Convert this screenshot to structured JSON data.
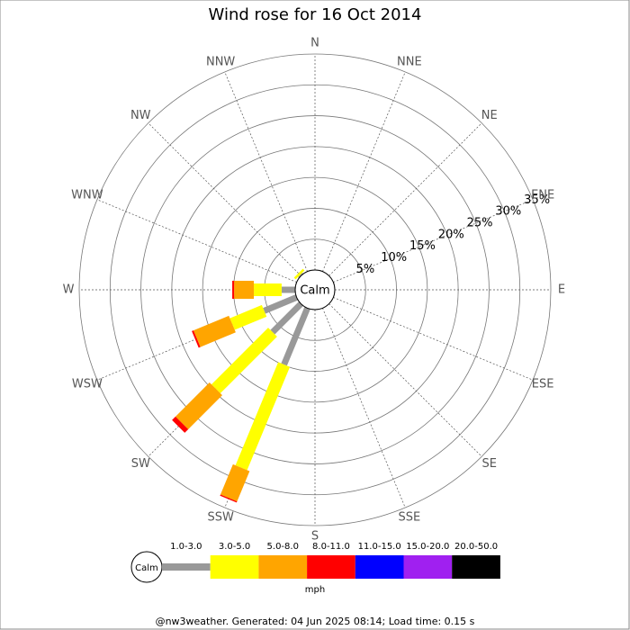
{
  "chart_data": {
    "type": "wind_rose",
    "title": "Wind rose for 16 Oct 2014",
    "categories": [
      "N",
      "NNE",
      "NE",
      "ENE",
      "E",
      "ESE",
      "SE",
      "SSE",
      "S",
      "SSW",
      "SW",
      "WSW",
      "W",
      "WNW",
      "NW",
      "NNW"
    ],
    "center_label": "Calm",
    "unit": "mph",
    "rlim": [
      0,
      35
    ],
    "rticks": [
      {
        "value": 5,
        "label": "5%"
      },
      {
        "value": 10,
        "label": "10%"
      },
      {
        "value": 15,
        "label": "15%"
      },
      {
        "value": 20,
        "label": "20%"
      },
      {
        "value": 25,
        "label": "25%"
      },
      {
        "value": 30,
        "label": "30%"
      },
      {
        "value": 35,
        "label": "35%"
      }
    ],
    "series": [
      {
        "name": "1.0-3.0",
        "color": "#999999",
        "values": [
          0,
          0,
          0,
          0,
          0,
          0,
          0,
          0,
          0,
          9.9,
          6.5,
          5.7,
          2.2,
          0,
          0.2,
          0
        ]
      },
      {
        "name": "3.0-5.0",
        "color": "#ffff00",
        "values": [
          0,
          0,
          0,
          0,
          0,
          0,
          0,
          0,
          0,
          18.1,
          13,
          5.6,
          4.5,
          0,
          0.4,
          0
        ]
      },
      {
        "name": "5.0-8.0",
        "color": "#ffa500",
        "values": [
          0,
          0,
          0,
          0,
          0,
          0,
          0,
          0,
          0,
          5.3,
          7.8,
          6.2,
          3.2,
          0,
          0,
          0
        ]
      },
      {
        "name": "8.0-11.0",
        "color": "#ff0000",
        "values": [
          0,
          0,
          0,
          0,
          0,
          0,
          0,
          0,
          0,
          0.2,
          0.8,
          0.3,
          0.3,
          0,
          0,
          0
        ]
      },
      {
        "name": "11.0-15.0",
        "color": "#0000ff",
        "values": [
          0,
          0,
          0,
          0,
          0,
          0,
          0,
          0,
          0,
          0,
          0,
          0,
          0,
          0,
          0,
          0
        ]
      },
      {
        "name": "15.0-20.0",
        "color": "#a020f0",
        "values": [
          0,
          0,
          0,
          0,
          0,
          0,
          0,
          0,
          0,
          0,
          0,
          0,
          0,
          0,
          0,
          0
        ]
      },
      {
        "name": "20.0-50.0",
        "color": "#000000",
        "values": [
          0,
          0,
          0,
          0,
          0,
          0,
          0,
          0,
          0,
          0,
          0,
          0,
          0,
          0,
          0,
          0
        ]
      }
    ],
    "footer": "@nw3weather. Generated: 04 Jun 2025 08:14; Load time: 0.15 s"
  }
}
